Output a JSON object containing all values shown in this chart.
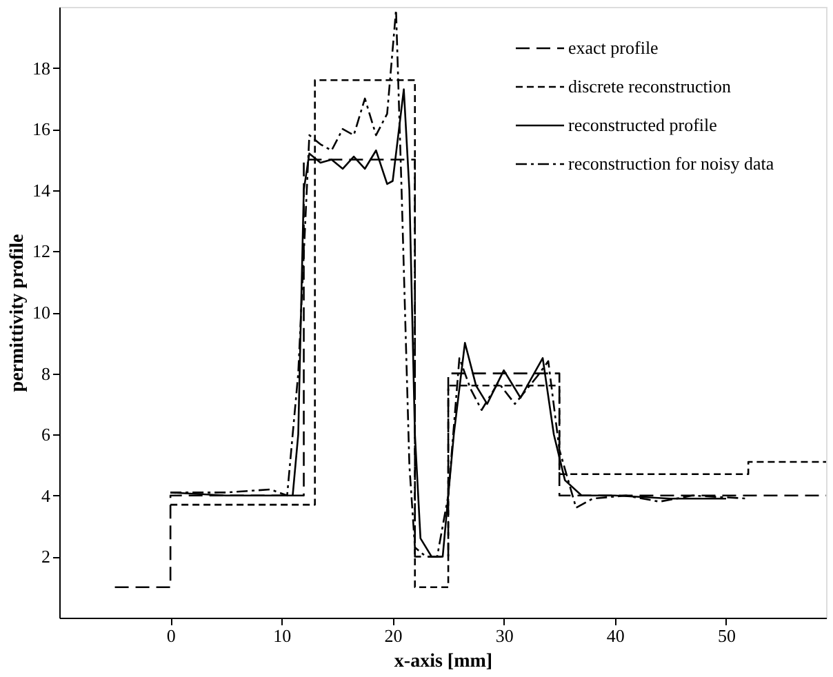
{
  "chart_data": {
    "type": "line",
    "xlabel": "x-axis [mm]",
    "ylabel": "permittivity profile",
    "xlim": [
      -10,
      59
    ],
    "xticks": [
      0,
      10,
      20,
      30,
      40,
      50
    ],
    "ylim": [
      0,
      20
    ],
    "yticks": [
      2,
      4,
      6,
      8,
      10,
      12,
      14,
      16,
      18
    ],
    "grid": false,
    "legend": "top right",
    "series": [
      {
        "name": "exact profile",
        "type": "step",
        "line_style": "longdash",
        "color": "#000000",
        "x": [
          -5,
          0,
          12,
          22,
          25,
          35,
          59
        ],
        "values": [
          1,
          4,
          15,
          2,
          8,
          4,
          4
        ]
      },
      {
        "name": "discrete reconstruction",
        "type": "step",
        "line_style": "dashed",
        "color": "#000000",
        "x": [
          0,
          13,
          22,
          25,
          35,
          52,
          59
        ],
        "values": [
          3.7,
          17.6,
          1,
          7.6,
          4.7,
          5.1,
          5.1
        ]
      },
      {
        "name": "reconstructed profile",
        "line_style": "solid",
        "color": "#000000",
        "x": [
          0,
          5,
          11,
          11.5,
          12,
          12.5,
          13.5,
          14.5,
          15.5,
          16.5,
          17.5,
          18.5,
          19.5,
          20,
          21,
          21.5,
          22,
          22.5,
          23.5,
          24.5,
          25.5,
          26.5,
          27.5,
          28.5,
          30,
          31.5,
          33.5,
          34.5,
          35.5,
          37,
          40,
          45,
          50
        ],
        "values": [
          4.1,
          4.0,
          4.0,
          6,
          14,
          15.2,
          14.9,
          15.0,
          14.7,
          15.1,
          14.7,
          15.3,
          14.2,
          14.3,
          17.3,
          14,
          6,
          2.6,
          2.0,
          2.0,
          6,
          9.0,
          7.6,
          7.0,
          8.1,
          7.2,
          8.5,
          6,
          4.5,
          4.0,
          4.0,
          3.9,
          3.9
        ]
      },
      {
        "name": "reconstruction for noisy data",
        "line_style": "dashdot",
        "color": "#000000",
        "x": [
          0,
          5,
          9,
          10.5,
          11.5,
          12.5,
          13.5,
          14.5,
          15.5,
          16.5,
          17.5,
          18.5,
          19.5,
          20.3,
          20.8,
          21.5,
          22,
          23,
          24,
          25,
          26,
          27,
          28,
          29.5,
          31,
          33,
          34,
          35,
          36.5,
          38,
          41,
          44,
          47,
          52
        ],
        "values": [
          4.1,
          4.1,
          4.2,
          4.0,
          8,
          15.8,
          15.5,
          15.3,
          16.0,
          15.8,
          17.0,
          15.8,
          16.5,
          19.9,
          14,
          5,
          2.3,
          2.0,
          2.0,
          4,
          8.5,
          7.5,
          6.8,
          7.7,
          7.0,
          7.9,
          8.4,
          5.5,
          3.6,
          3.9,
          4.0,
          3.8,
          4.0,
          3.9
        ]
      }
    ]
  }
}
